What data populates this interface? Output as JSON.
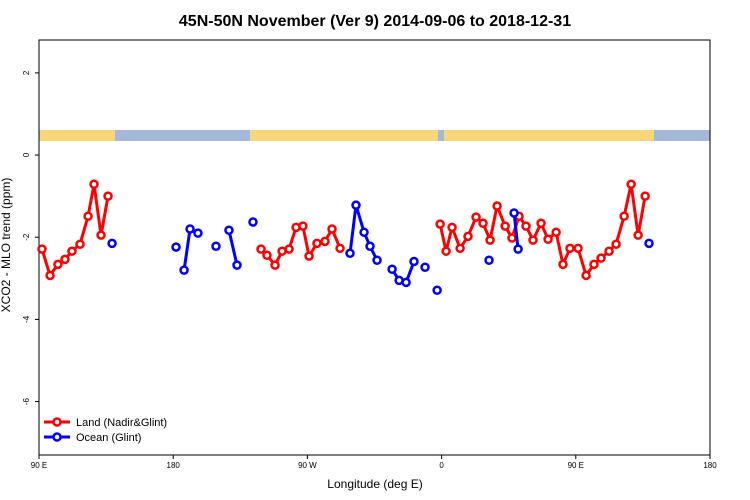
{
  "chart_data": {
    "type": "line",
    "title": "45N-50N November (Ver 9)   2014-09-06 to 2018-12-31",
    "x_label": "Longitude (deg E)",
    "y_label": "XCO2 - MLO trend (ppm)",
    "xlim": [
      90,
      540
    ],
    "ylim": [
      -7.3,
      2.8
    ],
    "xticks": [
      {
        "value": 90,
        "label": "90 E"
      },
      180,
      {
        "value": 270,
        "label": "90 W"
      },
      {
        "value": 360,
        "label": "0"
      },
      {
        "value": 450,
        "label": "90 E"
      },
      {
        "value": 540,
        "label": "180"
      }
    ],
    "yticks": [
      2,
      0,
      -2,
      -4,
      -6
    ],
    "legend": "bottom-left",
    "series": [
      {
        "name": "Land (Nadir&Glint)",
        "color": "#ff0000",
        "x": [
          92,
          97.4,
          102.7,
          107.4,
          112.1,
          117.5,
          122.9,
          126.9,
          131.6,
          136.3,
          null,
          238.9,
          242.9,
          248.3,
          253,
          257.7,
          262.4,
          267,
          271.1,
          276.4,
          281.8,
          286.5,
          291.9,
          null,
          359.0,
          363.0,
          367.0,
          372.4,
          377.7,
          383.1,
          387.8,
          392.5,
          397.2,
          402.6,
          407.2,
          411.9,
          416.6,
          421.3,
          426.7,
          431.4,
          436.8,
          441.4,
          446.1,
          451.5,
          456.9,
          462.2,
          466.9,
          472.3,
          477.0,
          482.4,
          487.1,
          491.8,
          496.5
        ],
        "values": [
          -2.29,
          -2.93,
          -2.66,
          -2.54,
          -2.34,
          -2.17,
          -1.49,
          -0.71,
          -1.95,
          -1.0,
          null,
          -2.29,
          -2.44,
          -2.68,
          -2.34,
          -2.29,
          -1.76,
          -1.73,
          -2.46,
          -2.15,
          -2.1,
          -1.8,
          -2.27,
          null,
          -1.68,
          -2.34,
          -1.76,
          -2.27,
          -1.98,
          -1.51,
          -1.66,
          -2.07,
          -1.24,
          -1.73,
          -2.02,
          -1.49,
          -1.73,
          -2.07,
          -1.66,
          -2.05,
          -1.88,
          -2.66,
          -2.27,
          -2.27,
          -2.93,
          -2.66,
          -2.51,
          -2.34,
          -2.17,
          -1.49,
          -0.71,
          -1.95,
          -1.0
        ]
      },
      {
        "name": "Ocean (Glint)",
        "color": "#0000ff",
        "x": [
          139.0,
          null,
          181.9,
          null,
          187.3,
          191.3,
          null,
          196.6,
          null,
          208.7,
          null,
          217.4,
          222.8,
          null,
          233.5,
          null,
          298.6,
          302.6,
          308.0,
          312.0,
          316.7,
          null,
          326.8,
          331.5,
          336.2,
          341.5,
          null,
          348.9,
          null,
          357.0,
          null,
          391.8,
          null,
          408.6,
          411.3,
          null,
          499.1
        ],
        "values": [
          -2.15,
          null,
          -2.24,
          null,
          -2.8,
          -1.8,
          null,
          -1.9,
          null,
          -2.22,
          null,
          -1.83,
          -2.68,
          null,
          -1.63,
          null,
          -2.39,
          -1.22,
          -1.88,
          -2.22,
          -2.56,
          null,
          -2.78,
          -3.05,
          -3.1,
          -2.59,
          null,
          -2.73,
          null,
          -3.29,
          null,
          -2.56,
          null,
          -1.41,
          -2.29,
          null,
          -2.15
        ]
      }
    ]
  }
}
